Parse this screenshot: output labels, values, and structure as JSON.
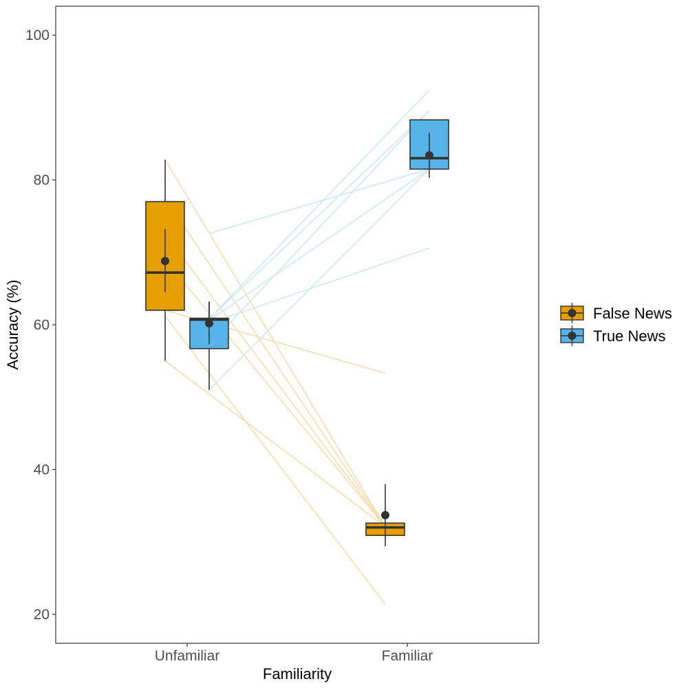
{
  "chart_data": {
    "type": "box",
    "title": "",
    "xlabel": "Familiarity",
    "ylabel": "Accuracy (%)",
    "ylim": [
      16,
      104
    ],
    "y_ticks": [
      20,
      40,
      60,
      80,
      100
    ],
    "categories": [
      "Unfamiliar",
      "Familiar"
    ],
    "legend": {
      "position": "right",
      "entries": [
        "False News",
        "True News"
      ]
    },
    "colors": {
      "false_news": "#E69F00",
      "true_news": "#56B4E9",
      "outline": "#333333",
      "false_lines": "#F5DBA6",
      "true_lines": "#C9E7F7"
    },
    "series": [
      {
        "name": "False News",
        "boxes": [
          {
            "category": "Unfamiliar",
            "whisker_low": 55.0,
            "q1": 62.0,
            "median": 67.2,
            "q3": 77.0,
            "whisker_high": 82.8,
            "mean": 68.8,
            "ci_low": 64.5,
            "ci_high": 73.2
          },
          {
            "category": "Familiar",
            "whisker_low": 30.9,
            "q1": 30.9,
            "median": 32.0,
            "q3": 32.6,
            "whisker_high": 32.6,
            "mean": 33.7,
            "ci_low": 29.4,
            "ci_high": 38.0
          }
        ],
        "participant_lines": [
          {
            "unfamiliar": 82.8,
            "familiar": 32.1
          },
          {
            "unfamiliar": 77.5,
            "familiar": 32.1
          },
          {
            "unfamiliar": 72.5,
            "familiar": 32.1
          },
          {
            "unfamiliar": 69.0,
            "familiar": 32.1
          },
          {
            "unfamiliar": 62.0,
            "familiar": 53.3
          },
          {
            "unfamiliar": 61.2,
            "familiar": 21.4
          },
          {
            "unfamiliar": 55.0,
            "familiar": 32.1
          }
        ]
      },
      {
        "name": "True News",
        "boxes": [
          {
            "category": "Unfamiliar",
            "whisker_low": 51.0,
            "q1": 56.7,
            "median": 60.7,
            "q3": 60.9,
            "whisker_high": 63.2,
            "mean": 60.2,
            "ci_low": 57.3,
            "ci_high": 63.2
          },
          {
            "category": "Familiar",
            "whisker_low": 81.5,
            "q1": 81.5,
            "median": 83.0,
            "q3": 88.3,
            "whisker_high": 88.3,
            "mean": 83.4,
            "ci_low": 80.3,
            "ci_high": 86.5
          }
        ],
        "participant_lines": [
          {
            "unfamiliar": 72.6,
            "familiar": 81.5
          },
          {
            "unfamiliar": 60.8,
            "familiar": 92.4
          },
          {
            "unfamiliar": 60.8,
            "familiar": 89.6
          },
          {
            "unfamiliar": 60.6,
            "familiar": 81.5
          },
          {
            "unfamiliar": 60.2,
            "familiar": 70.6
          },
          {
            "unfamiliar": 57.2,
            "familiar": 89.6
          },
          {
            "unfamiliar": 51.0,
            "familiar": 81.5
          }
        ]
      }
    ]
  }
}
